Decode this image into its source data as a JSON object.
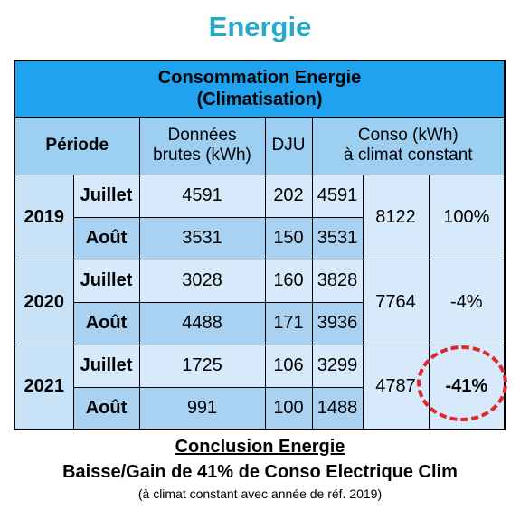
{
  "title": "Energie",
  "table": {
    "header_main_line1": "Consommation Energie",
    "header_main_line2": "(Climatisation)",
    "col_period": "Période",
    "col_raw_line1": "Données",
    "col_raw_line2": "brutes (kWh)",
    "col_dju": "DJU",
    "col_conso_line1": "Conso (kWh)",
    "col_conso_line2": "à climat constant",
    "years": [
      {
        "year": "2019",
        "rows": [
          {
            "month": "Juillet",
            "raw": "4591",
            "dju": "202",
            "conso": "4591"
          },
          {
            "month": "Août",
            "raw": "3531",
            "dju": "150",
            "conso": "3531"
          }
        ],
        "total": "8122",
        "percent": "100%"
      },
      {
        "year": "2020",
        "rows": [
          {
            "month": "Juillet",
            "raw": "3028",
            "dju": "160",
            "conso": "3828"
          },
          {
            "month": "Août",
            "raw": "4488",
            "dju": "171",
            "conso": "3936"
          }
        ],
        "total": "7764",
        "percent": "-4%"
      },
      {
        "year": "2021",
        "rows": [
          {
            "month": "Juillet",
            "raw": "1725",
            "dju": "106",
            "conso": "3299"
          },
          {
            "month": "Août",
            "raw": "991",
            "dju": "100",
            "conso": "1488"
          }
        ],
        "total": "4787",
        "percent": "-41%"
      }
    ]
  },
  "conclusion": {
    "heading": "Conclusion Energie",
    "statement": "Baisse/Gain de 41% de Conso Electrique Clim",
    "note": "(à climat constant avec année de réf. 2019)"
  },
  "colors": {
    "title": "#27a9c9",
    "header": "#1fa2ef",
    "subheader": "#9dcff3",
    "cell_light": "#d6eafb",
    "cell_mid": "#a9d2f2",
    "highlight": "#e0272b"
  }
}
